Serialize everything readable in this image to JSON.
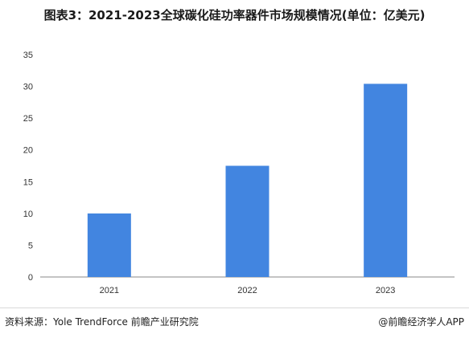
{
  "title": "图表3：2021-2023全球碳化硅功率器件市场规模情况(单位：亿美元)",
  "footer": {
    "source": "资料来源：Yole TrendForce 前瞻产业研究院",
    "credit": "@前瞻经济学人APP"
  },
  "colors": {
    "bar": "#4285e0",
    "axis": "#888888",
    "text": "#333333"
  },
  "chart_data": {
    "type": "bar",
    "categories": [
      "2021",
      "2022",
      "2023"
    ],
    "values": [
      10,
      17.5,
      30.4
    ],
    "ylim": [
      0,
      35
    ],
    "yticks": [
      0,
      5,
      10,
      15,
      20,
      25,
      30,
      35
    ],
    "grid": false,
    "legend": "none"
  }
}
